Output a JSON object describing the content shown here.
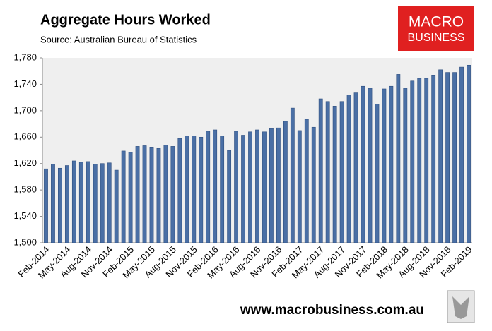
{
  "chart_data": {
    "type": "bar",
    "title": "Aggregate Hours Worked",
    "subtitle": "Source: Australian Bureau of Statistics",
    "categories": [
      "Feb-2014",
      null,
      null,
      "May-2014",
      null,
      null,
      "Aug-2014",
      null,
      null,
      "Nov-2014",
      null,
      null,
      "Feb-2015",
      null,
      null,
      "May-2015",
      null,
      null,
      "Aug-2015",
      null,
      null,
      "Nov-2015",
      null,
      null,
      "Feb-2016",
      null,
      null,
      "May-2016",
      null,
      null,
      "Aug-2016",
      null,
      null,
      "Nov-2016",
      null,
      null,
      "Feb-2017",
      null,
      null,
      "May-2017",
      null,
      null,
      "Aug-2017",
      null,
      null,
      "Nov-2017",
      null,
      null,
      "Feb-2018",
      null,
      null,
      "May-2018",
      null,
      null,
      "Aug-2018",
      null,
      null,
      "Nov-2018",
      null,
      null,
      "Feb-2019"
    ],
    "values": [
      1612,
      1619,
      1613,
      1617,
      1624,
      1622,
      1623,
      1619,
      1620,
      1621,
      1610,
      1639,
      1637,
      1646,
      1647,
      1645,
      1643,
      1648,
      1646,
      1658,
      1662,
      1662,
      1660,
      1669,
      1671,
      1662,
      1640,
      1669,
      1663,
      1668,
      1671,
      1668,
      1673,
      1674,
      1684,
      1704,
      1670,
      1687,
      1675,
      1718,
      1714,
      1707,
      1714,
      1724,
      1727,
      1737,
      1734,
      1710,
      1733,
      1737,
      1755,
      1734,
      1745,
      1749,
      1749,
      1754,
      1762,
      1758,
      1758,
      1766,
      1769
    ],
    "color": "#4a6fa5",
    "ylim": [
      1500,
      1780
    ],
    "yticks": [
      {
        "value": 1500,
        "label": "1,500"
      },
      {
        "value": 1540,
        "label": "1,540"
      },
      {
        "value": 1580,
        "label": "1,580"
      },
      {
        "value": 1620,
        "label": "1,620"
      },
      {
        "value": 1660,
        "label": "1,660"
      },
      {
        "value": 1700,
        "label": "1,700"
      },
      {
        "value": 1740,
        "label": "1,740"
      },
      {
        "value": 1780,
        "label": "1,780"
      }
    ],
    "grid": false
  },
  "brand": {
    "line1": "MACRO",
    "line2": "BUSINESS"
  },
  "website": "www.macrobusiness.com.au"
}
